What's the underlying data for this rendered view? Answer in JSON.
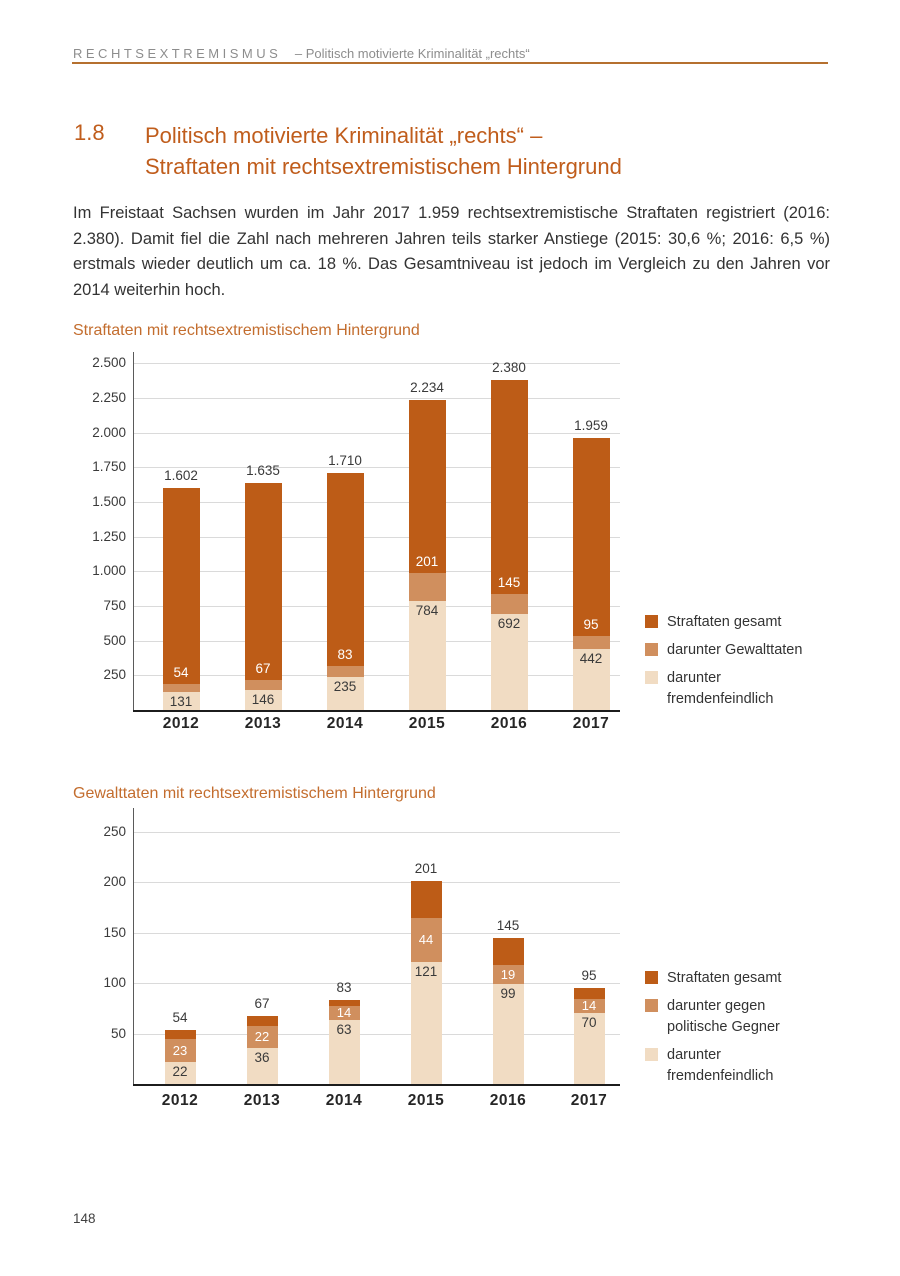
{
  "page": {
    "header": {
      "kicker": "RECHTSEXTREMISMUS",
      "rest": "– Politisch motivierte Kriminalität „rechts“"
    },
    "section": {
      "number": "1.8",
      "title": "Politisch motivierte Kriminalität „rechts“ –\nStraftaten mit rechtsextremistischem Hintergrund"
    },
    "paragraph": "Im Freistaat Sachsen wurden im Jahr 2017 1.959 rechtsextremistische Straftaten registriert (2016: 2.380). Damit fiel die Zahl nach mehreren Jahren teils starker Anstiege (2015: 30,6 %; 2016: 6,5 %) erstmals wieder deutlich um ca. 18 %. Das Gesamtniveau ist jedoch im Vergleich zu den Jahren vor 2014 weiterhin hoch.",
    "page_number": "148"
  },
  "colors": {
    "accent_orange": "#c05d1c",
    "chart_title_orange": "#c36d2e",
    "rule_orange": "#b5702f",
    "bar_dark": "#bd5c17",
    "bar_medium": "#d08f5e",
    "bar_light": "#f1dcc3",
    "header_gray": "#8d8d8d"
  },
  "chart_data": [
    {
      "type": "bar",
      "stacked": true,
      "title": "Straftaten mit rechtsextremistischem Hintergrund",
      "categories": [
        "2012",
        "2013",
        "2014",
        "2015",
        "2016",
        "2017"
      ],
      "series": [
        {
          "name": "Straftaten gesamt",
          "role": "total",
          "color": "#bd5c17",
          "values": [
            1602,
            1635,
            1710,
            2234,
            2380,
            1959
          ],
          "labels": [
            "1.602",
            "1.635",
            "1.710",
            "2.234",
            "2.380",
            "1.959"
          ]
        },
        {
          "name": "darunter Gewalttaten",
          "role": "sub-mid",
          "color": "#d08f5e",
          "values": [
            54,
            67,
            83,
            201,
            145,
            95
          ],
          "labels": [
            "54",
            "67",
            "83",
            "201",
            "145",
            "95"
          ]
        },
        {
          "name": "darunter fremdenfeindlich",
          "role": "sub-bottom",
          "color": "#f1dcc3",
          "values": [
            131,
            146,
            235,
            784,
            692,
            442
          ],
          "labels": [
            "131",
            "146",
            "235",
            "784",
            "692",
            "442"
          ]
        }
      ],
      "ylim": [
        0,
        2500
      ],
      "ytick_values": [
        250,
        500,
        750,
        1000,
        1250,
        1500,
        1750,
        2000,
        2250,
        2500
      ],
      "ytick_labels": [
        "250",
        "500",
        "750",
        "1.000",
        "1.250",
        "1.500",
        "1.750",
        "2.000",
        "2.250",
        "2.500"
      ],
      "grid": true,
      "legend_position": "right",
      "legend": [
        {
          "color": "#bd5c17",
          "label": "Straftaten gesamt"
        },
        {
          "color": "#d08f5e",
          "label": "darunter Gewalttaten"
        },
        {
          "color": "#f1dcc3",
          "label": "darunter\nfremdenfeindlich"
        }
      ]
    },
    {
      "type": "bar",
      "stacked": true,
      "title": "Gewalttaten mit rechtsextremistischem Hintergrund",
      "categories": [
        "2012",
        "2013",
        "2014",
        "2015",
        "2016",
        "2017"
      ],
      "series": [
        {
          "name": "Straftaten gesamt",
          "role": "total",
          "color": "#bd5c17",
          "values": [
            54,
            67,
            83,
            201,
            145,
            95
          ],
          "labels": [
            "54",
            "67",
            "83",
            "201",
            "145",
            "95"
          ]
        },
        {
          "name": "darunter gegen politische Gegner",
          "role": "sub-mid",
          "color": "#d08f5e",
          "values": [
            23,
            22,
            14,
            44,
            19,
            14
          ],
          "labels": [
            "23",
            "22",
            "14",
            "44",
            "19",
            "14"
          ]
        },
        {
          "name": "darunter fremdenfeindlich",
          "role": "sub-bottom",
          "color": "#f1dcc3",
          "values": [
            22,
            36,
            63,
            121,
            99,
            70
          ],
          "labels": [
            "22",
            "36",
            "63",
            "121",
            "99",
            "70"
          ]
        }
      ],
      "ylim": [
        0,
        250
      ],
      "ytick_values": [
        50,
        100,
        150,
        200,
        250
      ],
      "ytick_labels": [
        "50",
        "100",
        "150",
        "200",
        "250"
      ],
      "grid": true,
      "legend_position": "right",
      "legend": [
        {
          "color": "#bd5c17",
          "label": "Straftaten gesamt"
        },
        {
          "color": "#d08f5e",
          "label": "darunter gegen\npolitische Gegner"
        },
        {
          "color": "#f1dcc3",
          "label": "darunter\nfremdenfeindlich"
        }
      ]
    }
  ]
}
